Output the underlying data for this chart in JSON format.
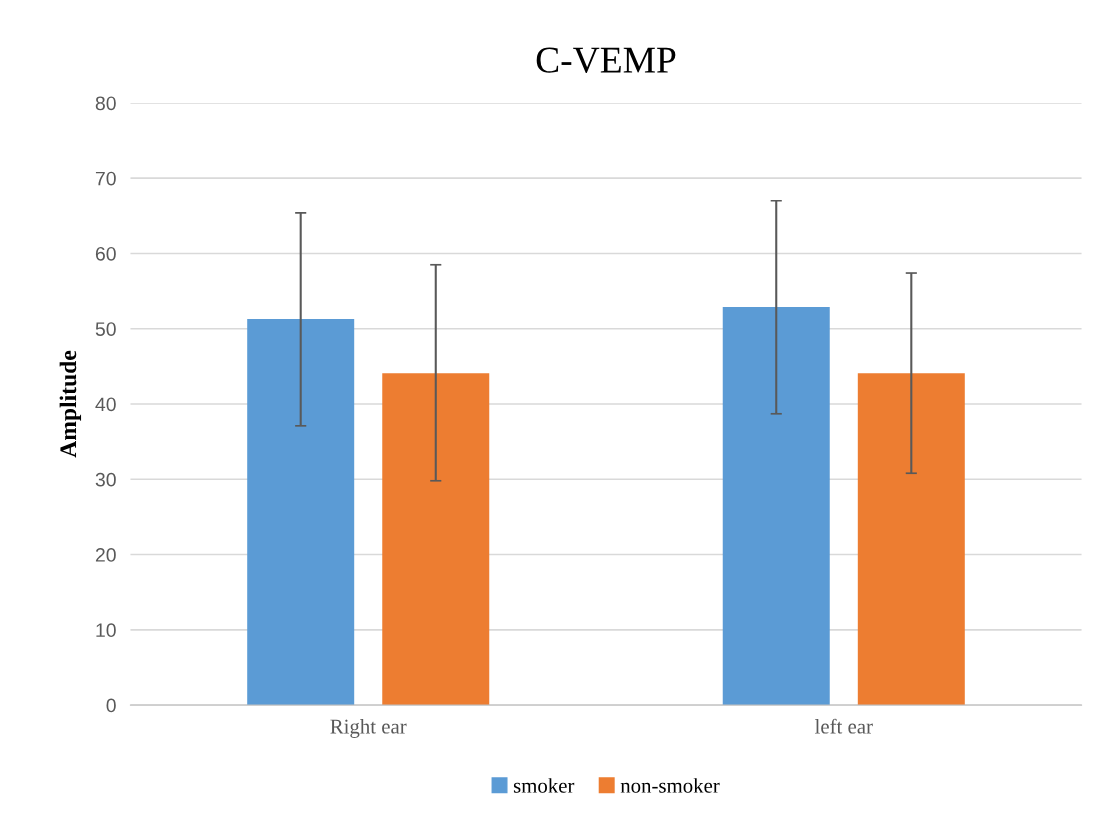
{
  "chart_data": {
    "type": "bar",
    "title": "C-VEMP",
    "ylabel": "Amplitude",
    "categories": [
      "Right ear",
      "left ear"
    ],
    "series": [
      {
        "name": "smoker",
        "color": "#5b9bd5",
        "values": [
          51.3,
          52.9
        ],
        "errors": [
          [
            37.1,
            65.4
          ],
          [
            38.7,
            67.0
          ]
        ]
      },
      {
        "name": "non-smoker",
        "color": "#ed7d31",
        "values": [
          44.1,
          44.1
        ],
        "errors": [
          [
            29.8,
            58.5
          ],
          [
            30.8,
            57.4
          ]
        ]
      }
    ],
    "ylim": [
      0,
      80
    ],
    "yticks": [
      0,
      10,
      20,
      30,
      40,
      50,
      60,
      70,
      80
    ],
    "grid": "y",
    "legend": "bottom"
  }
}
